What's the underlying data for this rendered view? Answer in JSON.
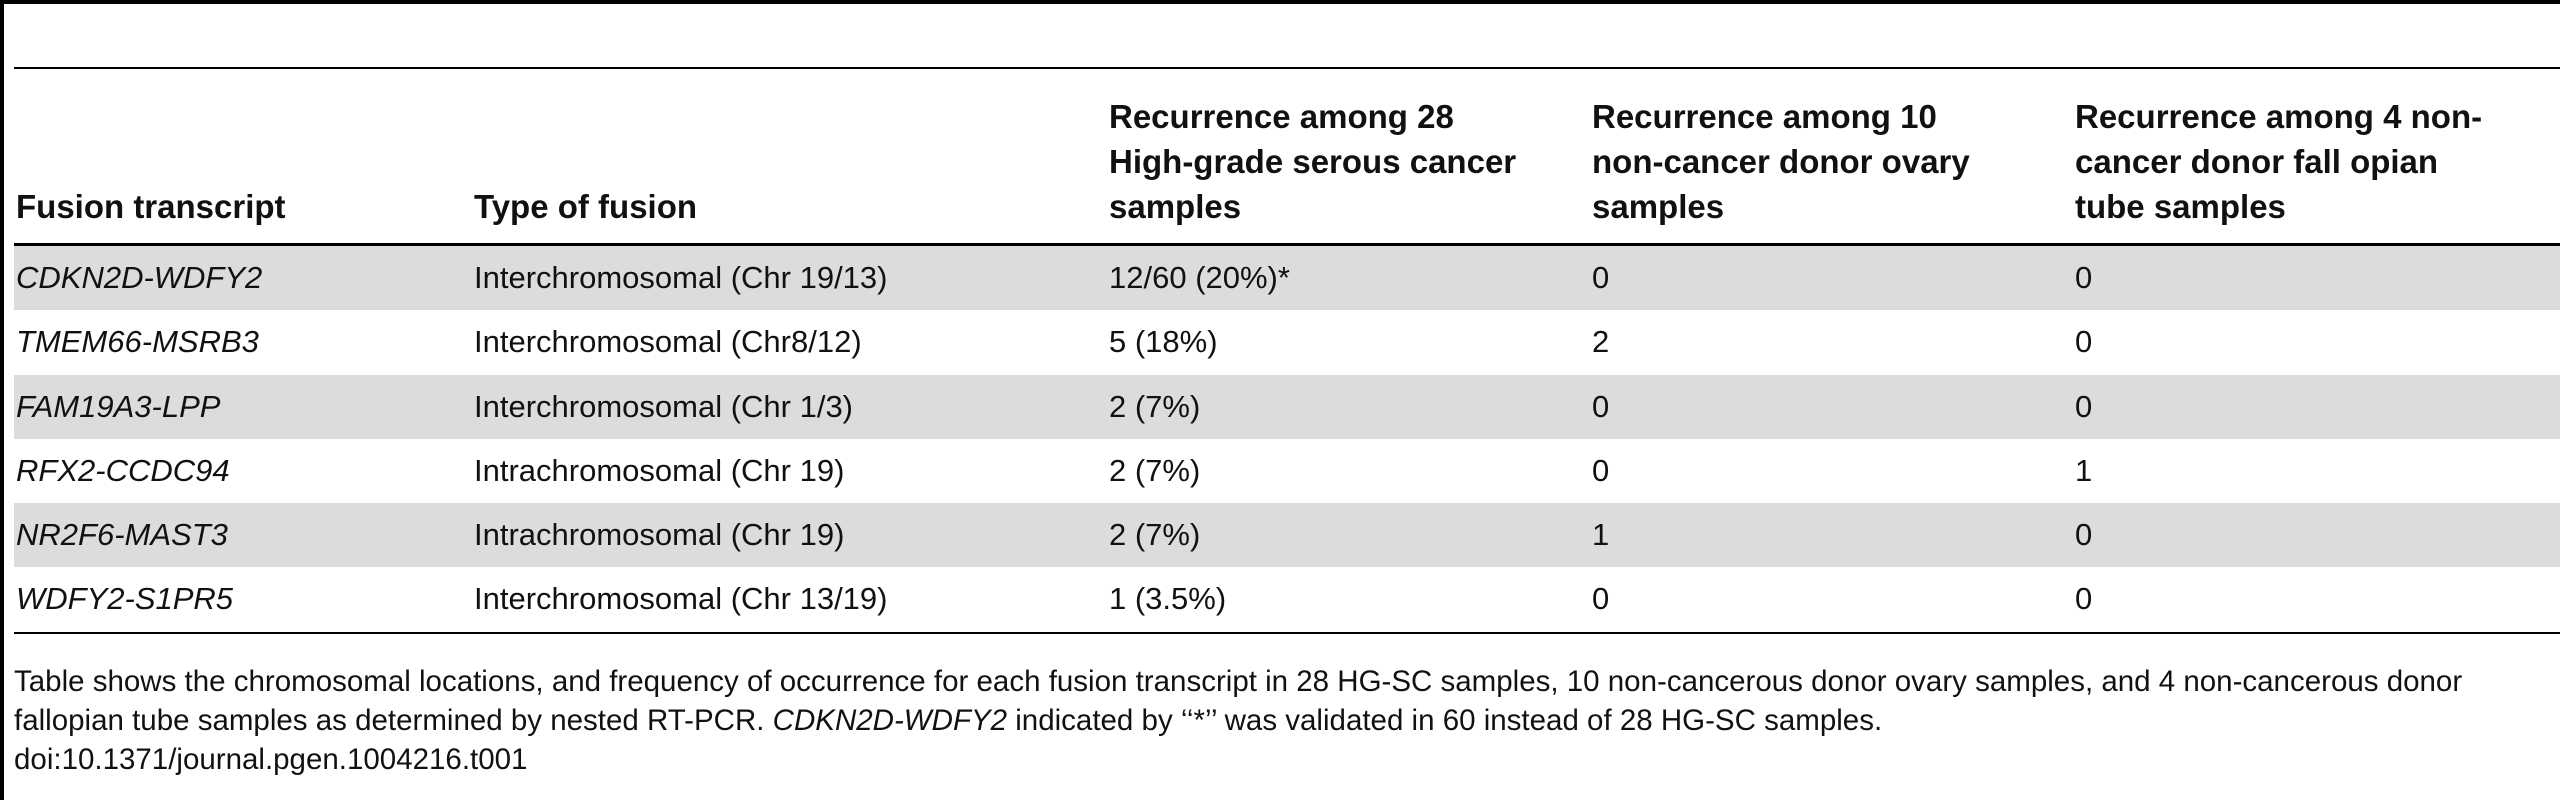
{
  "table": {
    "headers": {
      "fusion_transcript": "Fusion transcript",
      "type_of_fusion": "Type of fusion",
      "hgsc": "Recurrence among 28 High-grade serous cancer samples",
      "ovary": "Recurrence among 10 non-cancer donor ovary samples",
      "tube": "Recurrence among 4 non-cancer donor fall opian tube samples"
    },
    "rows": [
      {
        "fusion": "CDKN2D-WDFY2",
        "type": "Interchromosomal (Chr 19/13)",
        "hgsc": "12/60 (20%)*",
        "ovary": "0",
        "tube": "0"
      },
      {
        "fusion": "TMEM66-MSRB3",
        "type": "Interchromosomal (Chr8/12)",
        "hgsc": "5 (18%)",
        "ovary": "2",
        "tube": "0"
      },
      {
        "fusion": "FAM19A3-LPP",
        "type": "Interchromosomal (Chr 1/3)",
        "hgsc": "2 (7%)",
        "ovary": "0",
        "tube": "0"
      },
      {
        "fusion": "RFX2-CCDC94",
        "type": "Intrachromosomal (Chr 19)",
        "hgsc": "2 (7%)",
        "ovary": "0",
        "tube": "1"
      },
      {
        "fusion": "NR2F6-MAST3",
        "type": "Intrachromosomal (Chr 19)",
        "hgsc": "2 (7%)",
        "ovary": "1",
        "tube": "0"
      },
      {
        "fusion": "WDFY2-S1PR5",
        "type": "Interchromosomal (Chr 13/19)",
        "hgsc": "1 (3.5%)",
        "ovary": "0",
        "tube": "0"
      }
    ]
  },
  "footnote": {
    "line1": "Table shows the chromosomal locations, and frequency of occurrence for each fusion transcript in 28 HG-SC samples, 10 non-cancerous donor ovary samples, and 4 non-cancerous donor fallopian tube samples as determined by nested RT-PCR.",
    "gene": "CDKN2D-WDFY2",
    "line2": "indicated by ‘‘*’’ was validated in 60 instead of 28 HG-SC samples.",
    "doi": "doi:10.1371/journal.pgen.1004216.t001"
  },
  "colors": {
    "shaded_row": "#dcdcdc",
    "rule": "#000000"
  }
}
